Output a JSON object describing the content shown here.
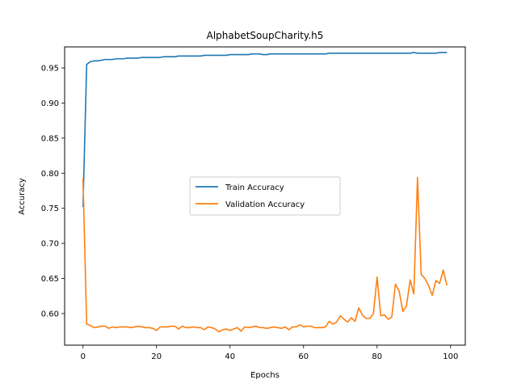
{
  "chart_data": {
    "type": "line",
    "title": "AlphabetSoupCharity.h5",
    "xlabel": "Epochs",
    "ylabel": "Accuracy",
    "xlim": [
      -5,
      104
    ],
    "ylim": [
      0.555,
      0.98
    ],
    "xticks": [
      0,
      20,
      40,
      60,
      80,
      100
    ],
    "yticks": [
      0.6,
      0.65,
      0.7,
      0.75,
      0.8,
      0.85,
      0.9,
      0.95
    ],
    "legend_position": "center-right",
    "grid": false,
    "x": [
      0,
      1,
      2,
      3,
      4,
      5,
      6,
      7,
      8,
      9,
      10,
      11,
      12,
      13,
      14,
      15,
      16,
      17,
      18,
      19,
      20,
      21,
      22,
      23,
      24,
      25,
      26,
      27,
      28,
      29,
      30,
      31,
      32,
      33,
      34,
      35,
      36,
      37,
      38,
      39,
      40,
      41,
      42,
      43,
      44,
      45,
      46,
      47,
      48,
      49,
      50,
      51,
      52,
      53,
      54,
      55,
      56,
      57,
      58,
      59,
      60,
      61,
      62,
      63,
      64,
      65,
      66,
      67,
      68,
      69,
      70,
      71,
      72,
      73,
      74,
      75,
      76,
      77,
      78,
      79,
      80,
      81,
      82,
      83,
      84,
      85,
      86,
      87,
      88,
      89,
      90,
      91,
      92,
      93,
      94,
      95,
      96,
      97,
      98,
      99
    ],
    "series": [
      {
        "name": "Train Accuracy",
        "color": "#1f77b4",
        "values": [
          0.752,
          0.955,
          0.959,
          0.96,
          0.96,
          0.961,
          0.962,
          0.962,
          0.962,
          0.963,
          0.963,
          0.963,
          0.964,
          0.964,
          0.964,
          0.964,
          0.965,
          0.965,
          0.965,
          0.965,
          0.965,
          0.965,
          0.966,
          0.966,
          0.966,
          0.966,
          0.967,
          0.967,
          0.967,
          0.967,
          0.967,
          0.967,
          0.967,
          0.968,
          0.968,
          0.968,
          0.968,
          0.968,
          0.968,
          0.968,
          0.969,
          0.969,
          0.969,
          0.969,
          0.969,
          0.969,
          0.97,
          0.97,
          0.97,
          0.969,
          0.969,
          0.97,
          0.97,
          0.97,
          0.97,
          0.97,
          0.97,
          0.97,
          0.97,
          0.97,
          0.97,
          0.97,
          0.97,
          0.97,
          0.97,
          0.97,
          0.97,
          0.971,
          0.971,
          0.971,
          0.971,
          0.971,
          0.971,
          0.971,
          0.971,
          0.971,
          0.971,
          0.971,
          0.971,
          0.971,
          0.971,
          0.971,
          0.971,
          0.971,
          0.971,
          0.971,
          0.971,
          0.971,
          0.971,
          0.971,
          0.972,
          0.971,
          0.971,
          0.971,
          0.971,
          0.971,
          0.971,
          0.972,
          0.972,
          0.972
        ]
      },
      {
        "name": "Validation Accuracy",
        "color": "#ff7f0e",
        "values": [
          0.793,
          0.585,
          0.583,
          0.58,
          0.581,
          0.582,
          0.582,
          0.579,
          0.581,
          0.58,
          0.581,
          0.581,
          0.581,
          0.58,
          0.581,
          0.582,
          0.581,
          0.58,
          0.58,
          0.579,
          0.576,
          0.581,
          0.581,
          0.581,
          0.582,
          0.582,
          0.578,
          0.582,
          0.58,
          0.58,
          0.581,
          0.58,
          0.58,
          0.577,
          0.581,
          0.58,
          0.578,
          0.574,
          0.577,
          0.578,
          0.576,
          0.578,
          0.58,
          0.575,
          0.581,
          0.58,
          0.581,
          0.582,
          0.58,
          0.58,
          0.579,
          0.58,
          0.581,
          0.58,
          0.579,
          0.581,
          0.577,
          0.581,
          0.581,
          0.584,
          0.581,
          0.582,
          0.582,
          0.58,
          0.58,
          0.58,
          0.581,
          0.589,
          0.585,
          0.588,
          0.597,
          0.592,
          0.588,
          0.594,
          0.589,
          0.608,
          0.598,
          0.593,
          0.593,
          0.6,
          0.652,
          0.597,
          0.598,
          0.592,
          0.595,
          0.642,
          0.632,
          0.603,
          0.611,
          0.648,
          0.628,
          0.794,
          0.656,
          0.65,
          0.64,
          0.626,
          0.647,
          0.643,
          0.662,
          0.64
        ]
      }
    ]
  }
}
